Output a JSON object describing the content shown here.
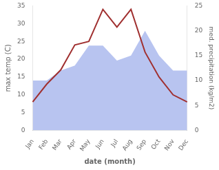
{
  "chart_data": {
    "type": "line",
    "xlabel": "date (month)",
    "ylabel": "max temp (C)",
    "y2label": "med. precipitation (kg/m2)",
    "categories": [
      "Jan",
      "Feb",
      "Mar",
      "Apr",
      "May",
      "Jun",
      "Jul",
      "Aug",
      "Sep",
      "Oct",
      "Nov",
      "Dec"
    ],
    "series": [
      {
        "type": "line",
        "color": "#a03030",
        "values": [
          8.0,
          13.0,
          17.0,
          24.0,
          25.0,
          34.0,
          29.0,
          34.0,
          22.0,
          15.0,
          10.0,
          8.0
        ]
      },
      {
        "type": "area",
        "color": "#b8c4f0",
        "axis": "y2",
        "values": [
          10.0,
          10.0,
          12.0,
          13.0,
          17.0,
          17.0,
          14.0,
          15.0,
          20.0,
          15.0,
          12.0,
          12.0
        ]
      }
    ],
    "ylim": [
      0,
      35
    ],
    "yticks": [
      0,
      5,
      10,
      15,
      20,
      25,
      30,
      35
    ],
    "y2lim": [
      0,
      25
    ],
    "y2ticks": [
      0,
      5,
      10,
      15,
      20,
      25
    ],
    "grid": false,
    "legend": false
  }
}
